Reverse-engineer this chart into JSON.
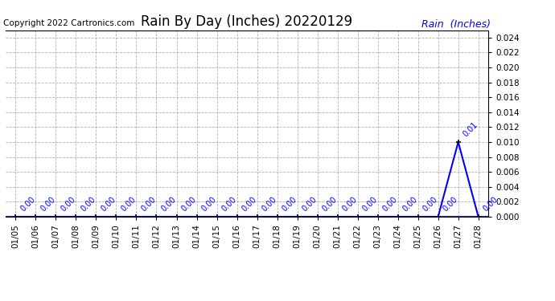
{
  "title": "Rain By Day (Inches) 20220129",
  "copyright_text": "Copyright 2022 Cartronics.com",
  "legend_label": "Rain  (Inches)",
  "dates": [
    "01/05",
    "01/06",
    "01/07",
    "01/08",
    "01/09",
    "01/10",
    "01/11",
    "01/12",
    "01/13",
    "01/14",
    "01/15",
    "01/16",
    "01/17",
    "01/18",
    "01/19",
    "01/20",
    "01/21",
    "01/22",
    "01/23",
    "01/24",
    "01/25",
    "01/26",
    "01/27",
    "01/28"
  ],
  "values": [
    0.0,
    0.0,
    0.0,
    0.0,
    0.0,
    0.0,
    0.0,
    0.0,
    0.0,
    0.0,
    0.0,
    0.0,
    0.0,
    0.0,
    0.0,
    0.0,
    0.0,
    0.0,
    0.0,
    0.0,
    0.0,
    0.0,
    0.01,
    0.0
  ],
  "ylim": [
    0,
    0.025
  ],
  "yticks": [
    0.0,
    0.002,
    0.004,
    0.006,
    0.008,
    0.01,
    0.012,
    0.014,
    0.016,
    0.018,
    0.02,
    0.022,
    0.024
  ],
  "line_color": "blue",
  "marker_color": "black",
  "annotation_color": "blue",
  "grid_color": "#aaaaaa",
  "background_color": "white",
  "title_fontsize": 12,
  "tick_fontsize": 7.5,
  "copyright_fontsize": 7.5,
  "legend_fontsize": 9,
  "annotation_fontsize": 7
}
